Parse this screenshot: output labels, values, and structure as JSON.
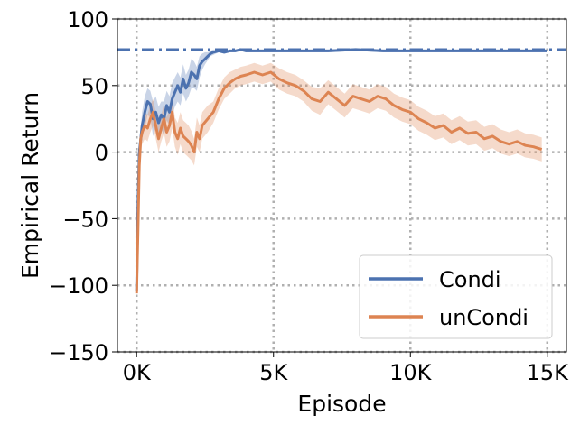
{
  "chart_data": {
    "type": "line",
    "xlabel": "Episode",
    "ylabel": "Empirical Return",
    "xlim": [
      -700,
      15700
    ],
    "ylim": [
      -150,
      100
    ],
    "x_ticks": [
      0,
      5000,
      10000,
      15000
    ],
    "x_tick_labels": [
      "0K",
      "5K",
      "10K",
      "15K"
    ],
    "y_ticks": [
      -150,
      -100,
      -50,
      0,
      50,
      100
    ],
    "y_tick_labels": [
      "−150",
      "−100",
      "−50",
      "0",
      "50",
      "100"
    ],
    "grid": "dotted",
    "legend_position": "lower-right",
    "reference_line": {
      "y": 77,
      "color": "#4c72b0",
      "style": "dashdot"
    },
    "series": [
      {
        "name": "Condi",
        "color": "#4c72b0",
        "x": [
          0,
          50,
          100,
          150,
          200,
          300,
          400,
          500,
          600,
          700,
          800,
          900,
          1000,
          1100,
          1200,
          1300,
          1400,
          1500,
          1600,
          1700,
          1800,
          1900,
          2000,
          2100,
          2200,
          2300,
          2400,
          2500,
          2600,
          2700,
          2800,
          3000,
          3200,
          3400,
          3600,
          3800,
          4000,
          5000,
          6000,
          7000,
          8000,
          9000,
          10000,
          11000,
          12000,
          13000,
          14000,
          15000
        ],
        "y": [
          -104,
          -40,
          0,
          10,
          20,
          30,
          38,
          36,
          25,
          30,
          22,
          28,
          25,
          35,
          30,
          40,
          45,
          50,
          45,
          55,
          48,
          52,
          60,
          58,
          55,
          65,
          68,
          70,
          72,
          74,
          75,
          76,
          75,
          76,
          76,
          77,
          76,
          76,
          76,
          76,
          77,
          76,
          76,
          76,
          76,
          76,
          76,
          76
        ],
        "lower": [
          -106,
          -46,
          -8,
          2,
          10,
          18,
          28,
          26,
          12,
          18,
          10,
          18,
          12,
          24,
          20,
          28,
          34,
          38,
          35,
          44,
          38,
          42,
          48,
          48,
          46,
          56,
          62,
          66,
          69,
          72,
          73,
          75,
          74,
          75,
          75,
          76,
          75,
          75,
          75,
          75,
          76,
          75,
          75,
          75,
          75,
          75,
          75,
          75
        ],
        "upper": [
          -102,
          -34,
          8,
          18,
          30,
          42,
          48,
          46,
          38,
          42,
          34,
          38,
          38,
          46,
          42,
          52,
          56,
          60,
          56,
          66,
          58,
          62,
          70,
          68,
          64,
          72,
          74,
          75,
          75,
          76,
          77,
          77,
          76,
          77,
          77,
          78,
          77,
          77,
          77,
          77,
          78,
          77,
          77,
          77,
          77,
          77,
          77,
          77
        ]
      },
      {
        "name": "unCondi",
        "color": "#dd8452",
        "x": [
          0,
          50,
          100,
          150,
          200,
          300,
          400,
          500,
          600,
          700,
          800,
          900,
          1000,
          1100,
          1200,
          1300,
          1400,
          1500,
          1600,
          1700,
          1800,
          1900,
          2000,
          2100,
          2200,
          2300,
          2400,
          2600,
          2800,
          3000,
          3200,
          3400,
          3600,
          3800,
          4000,
          4300,
          4600,
          4900,
          5200,
          5500,
          5800,
          6100,
          6400,
          6700,
          7000,
          7300,
          7600,
          7900,
          8200,
          8500,
          8800,
          9100,
          9400,
          9700,
          10000,
          10300,
          10600,
          10900,
          11200,
          11500,
          11800,
          12100,
          12400,
          12700,
          13000,
          13300,
          13600,
          13900,
          14200,
          14500,
          14800
        ],
        "y": [
          -106,
          -60,
          -10,
          10,
          15,
          20,
          18,
          25,
          30,
          20,
          10,
          18,
          25,
          15,
          20,
          30,
          15,
          10,
          18,
          12,
          10,
          8,
          5,
          0,
          15,
          10,
          20,
          25,
          30,
          40,
          48,
          52,
          55,
          57,
          58,
          60,
          58,
          60,
          55,
          52,
          50,
          46,
          40,
          38,
          45,
          40,
          35,
          42,
          40,
          38,
          42,
          40,
          35,
          32,
          30,
          25,
          22,
          18,
          20,
          15,
          18,
          14,
          15,
          10,
          12,
          8,
          6,
          8,
          5,
          4,
          2
        ],
        "lower": [
          -108,
          -66,
          -18,
          2,
          6,
          10,
          8,
          15,
          20,
          10,
          0,
          8,
          14,
          4,
          8,
          18,
          4,
          -2,
          6,
          0,
          -2,
          -4,
          -6,
          -10,
          4,
          0,
          10,
          15,
          22,
          32,
          40,
          44,
          48,
          50,
          51,
          53,
          51,
          53,
          47,
          44,
          42,
          38,
          31,
          28,
          36,
          31,
          26,
          33,
          31,
          29,
          33,
          31,
          26,
          23,
          21,
          16,
          13,
          9,
          11,
          6,
          9,
          5,
          6,
          1,
          3,
          -1,
          -3,
          -1,
          -4,
          -5,
          -7
        ],
        "upper": [
          -104,
          -54,
          -2,
          18,
          24,
          30,
          28,
          35,
          40,
          30,
          20,
          28,
          36,
          26,
          32,
          42,
          26,
          22,
          30,
          24,
          22,
          20,
          16,
          10,
          26,
          20,
          30,
          35,
          38,
          48,
          56,
          60,
          62,
          64,
          65,
          67,
          65,
          67,
          63,
          60,
          58,
          54,
          49,
          48,
          54,
          49,
          44,
          51,
          49,
          47,
          51,
          49,
          44,
          41,
          39,
          34,
          31,
          27,
          29,
          24,
          27,
          23,
          24,
          19,
          21,
          17,
          15,
          17,
          14,
          13,
          11
        ]
      }
    ]
  }
}
